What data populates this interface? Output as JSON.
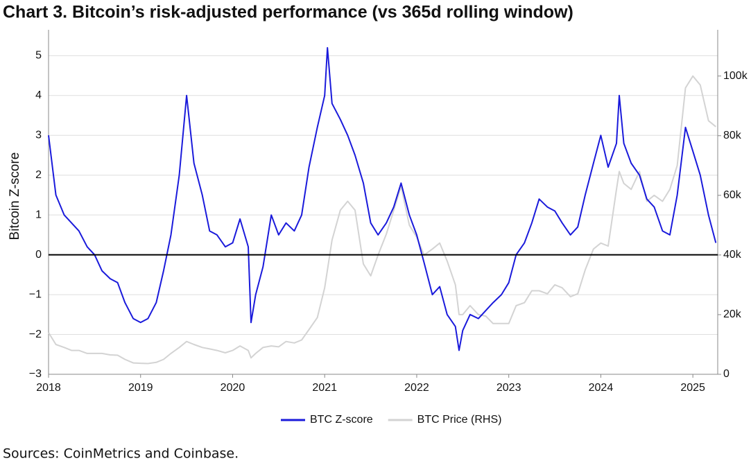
{
  "chart_data": {
    "type": "line",
    "title": "Chart 3. Bitcoin’s risk-adjusted performance (vs 365d rolling window)",
    "y_label": "Bitcoin Z-score",
    "source": "Sources: CoinMetrics and Coinbase.",
    "x": [
      2018.0,
      2018.08,
      2018.17,
      2018.25,
      2018.33,
      2018.42,
      2018.5,
      2018.58,
      2018.67,
      2018.75,
      2018.83,
      2018.92,
      2019.0,
      2019.08,
      2019.17,
      2019.25,
      2019.33,
      2019.42,
      2019.5,
      2019.58,
      2019.67,
      2019.75,
      2019.83,
      2019.92,
      2020.0,
      2020.08,
      2020.17,
      2020.2,
      2020.25,
      2020.33,
      2020.42,
      2020.5,
      2020.58,
      2020.67,
      2020.75,
      2020.83,
      2020.92,
      2021.0,
      2021.03,
      2021.08,
      2021.17,
      2021.25,
      2021.33,
      2021.42,
      2021.5,
      2021.58,
      2021.67,
      2021.75,
      2021.83,
      2021.92,
      2022.0,
      2022.08,
      2022.17,
      2022.25,
      2022.33,
      2022.42,
      2022.46,
      2022.5,
      2022.58,
      2022.67,
      2022.75,
      2022.83,
      2022.92,
      2023.0,
      2023.08,
      2023.17,
      2023.25,
      2023.33,
      2023.42,
      2023.5,
      2023.58,
      2023.67,
      2023.75,
      2023.83,
      2023.92,
      2024.0,
      2024.08,
      2024.17,
      2024.2,
      2024.25,
      2024.33,
      2024.42,
      2024.5,
      2024.58,
      2024.67,
      2024.75,
      2024.83,
      2024.92,
      2025.0,
      2025.08,
      2025.17,
      2025.25
    ],
    "series": [
      {
        "name": "BTC Z-score",
        "color": "#1a1adb",
        "axis": "y",
        "values": [
          3.0,
          1.5,
          1.0,
          0.8,
          0.6,
          0.2,
          0.0,
          -0.4,
          -0.6,
          -0.7,
          -1.2,
          -1.6,
          -1.7,
          -1.6,
          -1.2,
          -0.4,
          0.5,
          2.0,
          4.0,
          2.3,
          1.5,
          0.6,
          0.5,
          0.2,
          0.3,
          0.9,
          0.2,
          -1.7,
          -1.0,
          -0.3,
          1.0,
          0.5,
          0.8,
          0.6,
          1.0,
          2.2,
          3.2,
          4.0,
          5.2,
          3.8,
          3.4,
          3.0,
          2.5,
          1.8,
          0.8,
          0.5,
          0.8,
          1.2,
          1.8,
          1.0,
          0.5,
          -0.2,
          -1.0,
          -0.8,
          -1.5,
          -1.8,
          -2.4,
          -1.9,
          -1.5,
          -1.6,
          -1.4,
          -1.2,
          -1.0,
          -0.7,
          0.0,
          0.3,
          0.8,
          1.4,
          1.2,
          1.1,
          0.8,
          0.5,
          0.7,
          1.5,
          2.3,
          3.0,
          2.2,
          2.8,
          4.0,
          2.8,
          2.3,
          2.0,
          1.4,
          1.2,
          0.6,
          0.5,
          1.5,
          3.2,
          2.6,
          2.0,
          1.0,
          0.3
        ]
      },
      {
        "name": "BTC Price (RHS)",
        "color": "#d3d3d3",
        "axis": "y2",
        "values": [
          14000,
          10000,
          9000,
          8000,
          8000,
          7000,
          7000,
          7000,
          6500,
          6400,
          5000,
          3800,
          3700,
          3600,
          4000,
          5000,
          7000,
          9000,
          11000,
          10000,
          9000,
          8500,
          8000,
          7200,
          8000,
          9500,
          8000,
          5500,
          7000,
          9000,
          9500,
          9200,
          11000,
          10500,
          11500,
          15000,
          19000,
          29000,
          35000,
          45000,
          55000,
          58000,
          55000,
          37000,
          33000,
          40000,
          47000,
          55000,
          63000,
          50000,
          46000,
          40000,
          42000,
          44000,
          38000,
          30000,
          20000,
          20000,
          23000,
          20000,
          19500,
          17000,
          17000,
          17000,
          23000,
          24000,
          28000,
          28000,
          27000,
          30000,
          29000,
          26000,
          27000,
          35000,
          42000,
          44000,
          43000,
          62000,
          68000,
          64000,
          62000,
          68000,
          58000,
          60000,
          58000,
          62000,
          70000,
          96000,
          100000,
          97000,
          85000,
          83000
        ]
      }
    ],
    "xlim": [
      2018,
      2025.27
    ],
    "xticks": [
      2018,
      2019,
      2020,
      2021,
      2022,
      2023,
      2024,
      2025
    ],
    "ylim": [
      -3,
      5.65
    ],
    "yticks": [
      {
        "value": -3,
        "label": "−3"
      },
      {
        "value": -2,
        "label": "−2"
      },
      {
        "value": -1,
        "label": "−1"
      },
      0,
      1,
      2,
      3,
      4,
      5
    ],
    "y2lim": [
      0,
      115500
    ],
    "y2ticks": [
      0,
      {
        "value": 20000,
        "label": "20k"
      },
      {
        "value": 40000,
        "label": "40k"
      },
      {
        "value": 60000,
        "label": "60k"
      },
      {
        "value": 80000,
        "label": "80k"
      },
      {
        "value": 100000,
        "label": "100k"
      }
    ],
    "grid": true,
    "legend": "bottom"
  }
}
